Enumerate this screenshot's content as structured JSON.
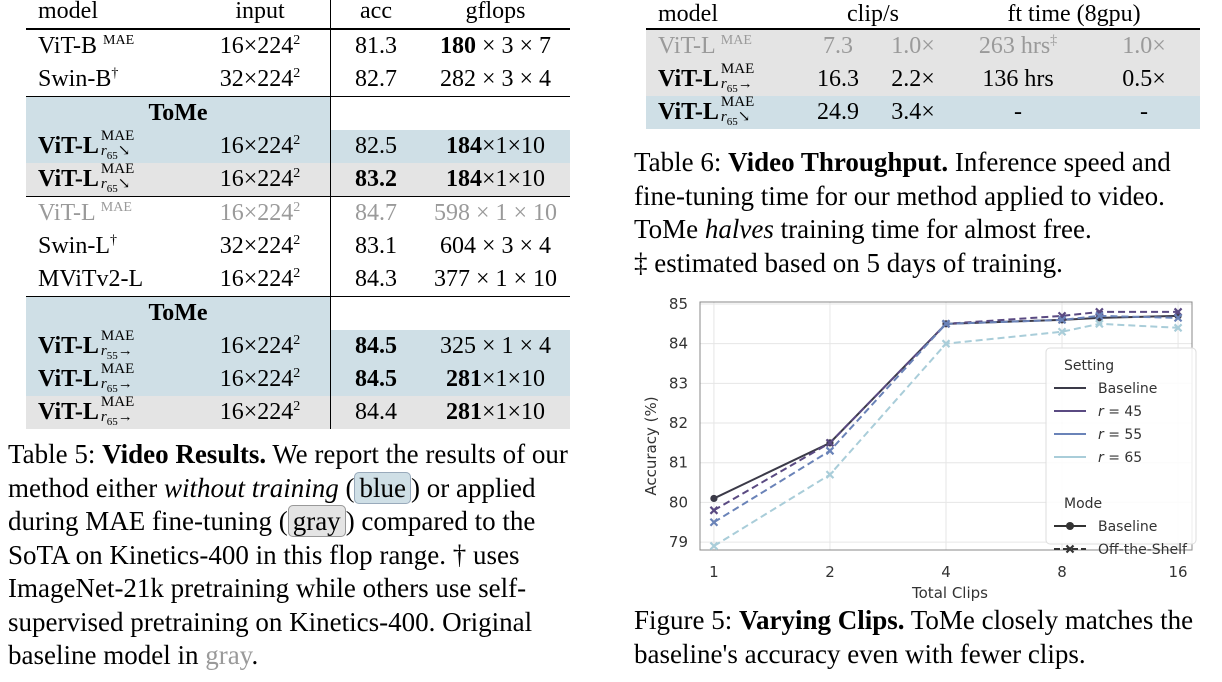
{
  "table5": {
    "headers": [
      "model",
      "input",
      "acc",
      "gflops"
    ],
    "rows": [
      {
        "model": "ViT-B",
        "sup": "MAE",
        "input": "16×224",
        "input_sup": "2",
        "acc": "81.3",
        "flops_bold": "180",
        "flops_rest": " × 3 × 7"
      },
      {
        "model": "Swin-B",
        "sup": "†",
        "input": "32×224",
        "input_sup": "2",
        "acc": "82.7",
        "flops_bold": "",
        "flops_rest": "282 × 3 × 4"
      },
      {
        "section": "ToMe"
      },
      {
        "model": "ViT-L",
        "mae_top": "MAE",
        "mae_r": "r",
        "mae_sub": "65",
        "input": "16×224",
        "input_sup": "2",
        "acc": "82.5",
        "flops_bold": "184",
        "flops_rest": "×1×10"
      },
      {
        "model": "ViT-L",
        "mae_top": "MAE",
        "mae_r": "r",
        "mae_sub": "65",
        "input": "16×224",
        "input_sup": "2",
        "acc": "83.2",
        "flops_bold": "184",
        "flops_rest": "×1×10"
      },
      {
        "model": "ViT-L",
        "sup": "MAE",
        "input": "16×224",
        "input_sup": "2",
        "acc": "84.7",
        "flops_bold": "",
        "flops_rest": "598 × 1 × 10"
      },
      {
        "model": "Swin-L",
        "sup": "†",
        "input": "32×224",
        "input_sup": "2",
        "acc": "83.1",
        "flops_bold": "",
        "flops_rest": "604 × 3 × 4"
      },
      {
        "model": "MViTv2-L",
        "sup": "",
        "input": "16×224",
        "input_sup": "2",
        "acc": "84.3",
        "flops_bold": "",
        "flops_rest": "377 × 1 × 10"
      },
      {
        "section": "ToMe"
      },
      {
        "model": "ViT-L",
        "mae_top": "MAE",
        "mae_r": "r",
        "mae_sub": "55",
        "input": "16×224",
        "input_sup": "2",
        "acc": "84.5",
        "flops_bold": "",
        "flops_rest": "325 × 1 × 4"
      },
      {
        "model": "ViT-L",
        "mae_top": "MAE",
        "mae_r": "r",
        "mae_sub": "65",
        "input": "16×224",
        "input_sup": "2",
        "acc": "84.5",
        "flops_bold": "281",
        "flops_rest": "×1×10"
      },
      {
        "model": "ViT-L",
        "mae_top": "MAE",
        "mae_r": "r",
        "mae_sub": "65",
        "input": "16×224",
        "input_sup": "2",
        "acc": "84.4",
        "flops_bold": "281",
        "flops_rest": "×1×10"
      }
    ],
    "arrows": {
      "down": "↘",
      "right": "→"
    }
  },
  "table6": {
    "headers": [
      "model",
      "clip/s",
      "ft time (8gpu)"
    ],
    "rows": [
      {
        "model": "ViT-L",
        "sup": "MAE",
        "clips": "7.3",
        "clips_x": "1.0×",
        "ft": "263 hrs",
        "ft_sup": "‡",
        "ft_x": "1.0×"
      },
      {
        "model": "ViT-L",
        "mae_top": "MAE",
        "mae_r": "r",
        "mae_sub": "65",
        "clips": "16.3",
        "clips_x": "2.2×",
        "ft": "136 hrs",
        "ft_sup": "",
        "ft_x": "0.5×"
      },
      {
        "model": "ViT-L",
        "mae_top": "MAE",
        "mae_r": "r",
        "mae_sub": "65",
        "clips": "24.9",
        "clips_x": "3.4×",
        "ft": "-",
        "ft_sup": "",
        "ft_x": "-"
      }
    ]
  },
  "caption5": {
    "label": "Table 5:",
    "title": "Video Results.",
    "t1": " We report the results of our method either ",
    "em1": "without training",
    "t2": " (",
    "chip_blue": "blue",
    "t3": ") or applied during MAE fine-tuning (",
    "chip_gray": "gray",
    "t4": ") compared to the SoTA on Kinetics-400 in this flop range. † uses ImageNet-21k pretraining while others use self-supervised pretraining on Kinetics-400. Original baseline model in ",
    "gray_word": "gray",
    "t5": "."
  },
  "caption6": {
    "label": "Table 6:",
    "title": "Video Throughput.",
    "t1": " Inference speed and fine-tuning time for our method applied to video. ToMe ",
    "em1": "halves",
    "t2": " training time for almost free.",
    "t3": "‡ estimated based on 5 days of training."
  },
  "caption_fig5": {
    "label": "Figure 5:",
    "title": "Varying Clips.",
    "t1": " ToMe closely matches the baseline's accuracy even with fewer clips."
  },
  "chart_data": {
    "type": "line",
    "xlabel": "Total Clips",
    "ylabel": "Accuracy (%)",
    "x": [
      1,
      2,
      4,
      8,
      10,
      16
    ],
    "x_ticks": [
      "1",
      "2",
      "4",
      "8",
      "16"
    ],
    "y_ticks": [
      "79",
      "80",
      "81",
      "82",
      "83",
      "84",
      "85"
    ],
    "ylim": [
      78.8,
      85.05
    ],
    "grid": true,
    "legend_position": "center-right",
    "legend": {
      "setting_title": "Setting",
      "mode_title": "Mode",
      "settings": [
        {
          "label": "Baseline",
          "color": "#3b3a48"
        },
        {
          "label": "r = 45",
          "r": "r",
          "eq": " = 45",
          "color": "#5a4a82"
        },
        {
          "label": "r = 55",
          "r": "r",
          "eq": " = 55",
          "color": "#6a83b8"
        },
        {
          "label": "r = 65",
          "r": "r",
          "eq": " = 65",
          "color": "#a9cdd9"
        }
      ],
      "modes": [
        "Baseline",
        "Off-the-Shelf"
      ]
    },
    "series": [
      {
        "name": "Baseline",
        "color": "#3b3a48",
        "mode": "Baseline",
        "values": [
          80.1,
          81.5,
          84.5,
          84.6,
          84.65,
          84.7
        ]
      },
      {
        "name": "r = 45",
        "color": "#5a4a82",
        "mode": "Off-the-Shelf",
        "values": [
          79.8,
          81.5,
          84.5,
          84.7,
          84.8,
          84.8
        ]
      },
      {
        "name": "r = 55",
        "color": "#6a83b8",
        "mode": "Off-the-Shelf",
        "values": [
          79.5,
          81.3,
          84.5,
          84.6,
          84.7,
          84.65
        ]
      },
      {
        "name": "r = 65",
        "color": "#a9cdd9",
        "mode": "Off-the-Shelf",
        "values": [
          78.9,
          80.7,
          84.0,
          84.3,
          84.5,
          84.4
        ]
      }
    ]
  },
  "colors": {
    "blue_row": "#cfdfe6",
    "gray_row": "#e4e4e4",
    "faded_text": "#9a9a9a"
  }
}
